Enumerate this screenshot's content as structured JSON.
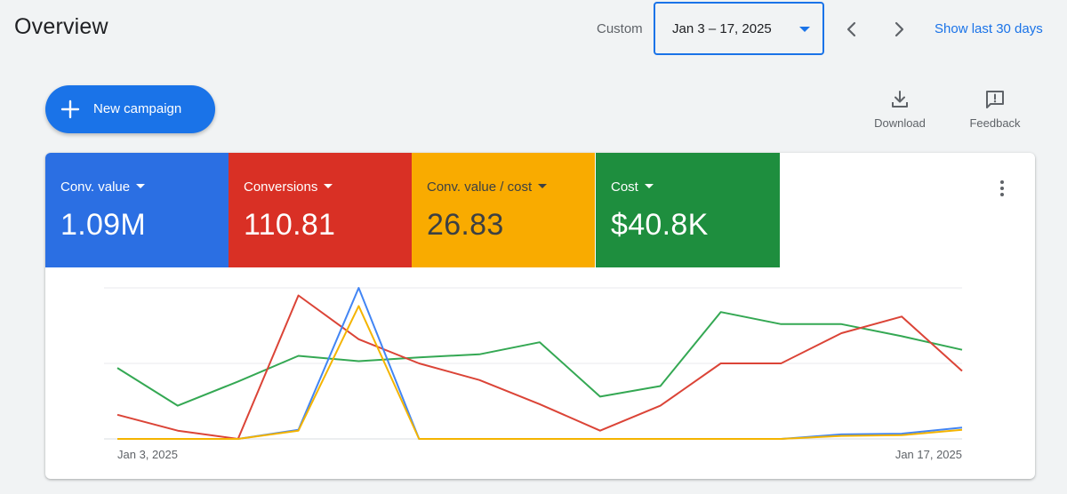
{
  "header": {
    "title": "Overview",
    "custom_label": "Custom",
    "date_range": "Jan 3 – 17, 2025",
    "show_last": "Show last 30 days"
  },
  "actions": {
    "new_campaign": "New campaign",
    "download": "Download",
    "feedback": "Feedback"
  },
  "metrics": [
    {
      "label": "Conv. value",
      "value": "1.09M",
      "color": "#2b6fe3"
    },
    {
      "label": "Conversions",
      "value": "110.81",
      "color": "#d93025"
    },
    {
      "label": "Conv. value / cost",
      "value": "26.83",
      "color": "#f9ab00"
    },
    {
      "label": "Cost",
      "value": "$40.8K",
      "color": "#1e8e3e"
    }
  ],
  "chart_data": {
    "type": "line",
    "x": [
      "Jan 3, 2025",
      "Jan 4, 2025",
      "Jan 5, 2025",
      "Jan 6, 2025",
      "Jan 7, 2025",
      "Jan 8, 2025",
      "Jan 9, 2025",
      "Jan 10, 2025",
      "Jan 11, 2025",
      "Jan 12, 2025",
      "Jan 13, 2025",
      "Jan 14, 2025",
      "Jan 15, 2025",
      "Jan 16, 2025",
      "Jan 17, 2025"
    ],
    "x_tick_labels": [
      "Jan 3, 2025",
      "Jan 17, 2025"
    ],
    "ylim": [
      0,
      100
    ],
    "grid": true,
    "series": [
      {
        "name": "Conv. value",
        "color": "#4285f4",
        "values": [
          0,
          0,
          0,
          6,
          100,
          0,
          0,
          0,
          0,
          0,
          0,
          0,
          3,
          3.5,
          7.5
        ]
      },
      {
        "name": "Conversions",
        "color": "#db4437",
        "values": [
          16,
          5.5,
          0,
          95,
          66,
          50,
          39,
          23,
          5.5,
          22,
          50,
          50,
          70,
          81,
          45
        ]
      },
      {
        "name": "Conv. value / cost",
        "color": "#f4b400",
        "values": [
          0,
          0,
          0,
          5.5,
          88,
          0,
          0,
          0,
          0,
          0,
          0,
          0,
          2,
          2.5,
          6
        ]
      },
      {
        "name": "Cost",
        "color": "#34a853",
        "values": [
          47,
          22,
          38,
          55,
          51.5,
          54,
          56,
          64,
          28,
          35,
          84,
          76,
          76,
          68,
          59
        ]
      }
    ]
  }
}
